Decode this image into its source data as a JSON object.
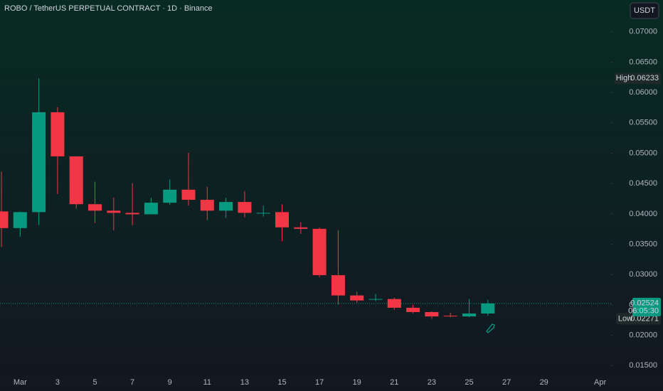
{
  "chart_data": {
    "type": "candlestick",
    "title": "ROBO / TetherUS PERPETUAL CONTRACT · 1D · Binance",
    "currency": "USDT",
    "categories": [
      null,
      "Mar",
      null,
      "3",
      null,
      "5",
      null,
      "7",
      null,
      "9",
      null,
      "11",
      null,
      "13",
      null,
      "15",
      null,
      "17",
      null,
      "19",
      null,
      "21",
      null,
      "23",
      null,
      "25",
      null,
      "27",
      null,
      "29",
      null,
      null,
      "Apr"
    ],
    "open": [
      0.04041,
      0.03766,
      0.04029,
      0.05675,
      0.04948,
      0.0416,
      0.04053,
      0.04017,
      0.03993,
      0.04184,
      0.04399,
      0.04232,
      0.04053,
      0.04196,
      0.04005,
      0.04029,
      0.03778,
      0.03754,
      0.0299,
      0.02656,
      0.02585,
      0.02597,
      0.02453,
      0.02382,
      0.02322,
      0.0231,
      0.02358,
      null,
      null,
      null,
      null,
      null,
      null
    ],
    "high": [
      0.04697,
      0.0404,
      0.06233,
      0.05759,
      0.04948,
      0.0453,
      0.04267,
      0.04506,
      0.04267,
      0.04566,
      0.05007,
      0.04446,
      0.04267,
      0.04375,
      0.04136,
      0.0416,
      0.03862,
      0.03778,
      0.0373,
      0.02716,
      0.0268,
      0.02621,
      0.02501,
      0.02394,
      0.0237,
      0.02597,
      0.02585,
      null,
      null,
      null,
      null,
      null,
      null
    ],
    "low": [
      0.03456,
      0.03623,
      0.03814,
      0.04327,
      0.04088,
      0.0385,
      0.0373,
      0.03814,
      0.03993,
      0.04148,
      0.04136,
      0.03897,
      0.03933,
      0.03945,
      0.03957,
      0.03551,
      0.03671,
      0.02955,
      0.02501,
      0.02537,
      0.02561,
      0.02418,
      0.02358,
      0.02271,
      0.02298,
      0.02298,
      0.02322,
      null,
      null,
      null,
      null,
      null,
      null
    ],
    "close": [
      0.03766,
      0.04029,
      0.05675,
      0.04948,
      0.0416,
      0.04053,
      0.04017,
      0.03993,
      0.04184,
      0.04399,
      0.04232,
      0.04053,
      0.04196,
      0.04017,
      0.04017,
      0.03778,
      0.03754,
      0.0299,
      0.02656,
      0.02573,
      0.02597,
      0.02453,
      0.02382,
      0.0231,
      0.0231,
      0.02358,
      0.02524,
      null,
      null,
      null,
      null,
      null,
      null
    ],
    "up_color": "#089981",
    "down_color": "#f23645",
    "ylim": [
      0.01081,
      0.07525
    ],
    "yticks": [
      {
        "value": 0.015,
        "label": "0.01500"
      },
      {
        "value": 0.02,
        "label": "0.02000"
      },
      {
        "value": 0.025,
        "label": "0.02500"
      },
      {
        "value": 0.03,
        "label": "0.03000"
      },
      {
        "value": 0.035,
        "label": "0.03500"
      },
      {
        "value": 0.04,
        "label": "0.04000"
      },
      {
        "value": 0.045,
        "label": "0.04500"
      },
      {
        "value": 0.05,
        "label": "0.05000"
      },
      {
        "value": 0.055,
        "label": "0.05500"
      },
      {
        "value": 0.06,
        "label": "0.06000"
      },
      {
        "value": 0.065,
        "label": "0.06500"
      },
      {
        "value": 0.07,
        "label": "0.07000"
      }
    ],
    "high_marker": {
      "label": "High",
      "value": 0.06233
    },
    "low_marker": {
      "label": "Low",
      "value": 0.02271
    },
    "last_price": {
      "value": 0.02524,
      "countdown": "06:05:30"
    }
  }
}
